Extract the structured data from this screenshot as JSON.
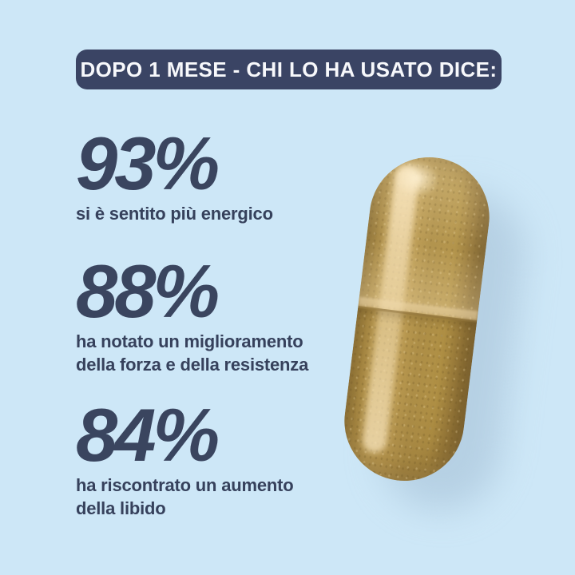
{
  "banner": {
    "label": "DOPO 1 MESE - CHI LO HA USATO DICE:"
  },
  "stats": [
    {
      "value": "93%",
      "label": "si è sentito più energico"
    },
    {
      "value": "88%",
      "label": "ha notato un miglioramento\ndella forza e della resistenza"
    },
    {
      "value": "84%",
      "label": "ha riscontrato un aumento\ndella libido"
    }
  ],
  "capsule": {
    "description": "translucent supplement capsule filled with khaki herbal powder, tilted, with soft drop shadow"
  },
  "colors": {
    "background": "#cde7f7",
    "banner_bg": "#3a4464",
    "banner_text": "#f7f8fb",
    "stat_number": "#3a455f",
    "stat_label": "#36415c",
    "capsule_base": "#b3914a",
    "capsule_edge": "#816631",
    "capsule_highlight": "#f2dcba",
    "drop_shadow": "#a3bed4"
  }
}
